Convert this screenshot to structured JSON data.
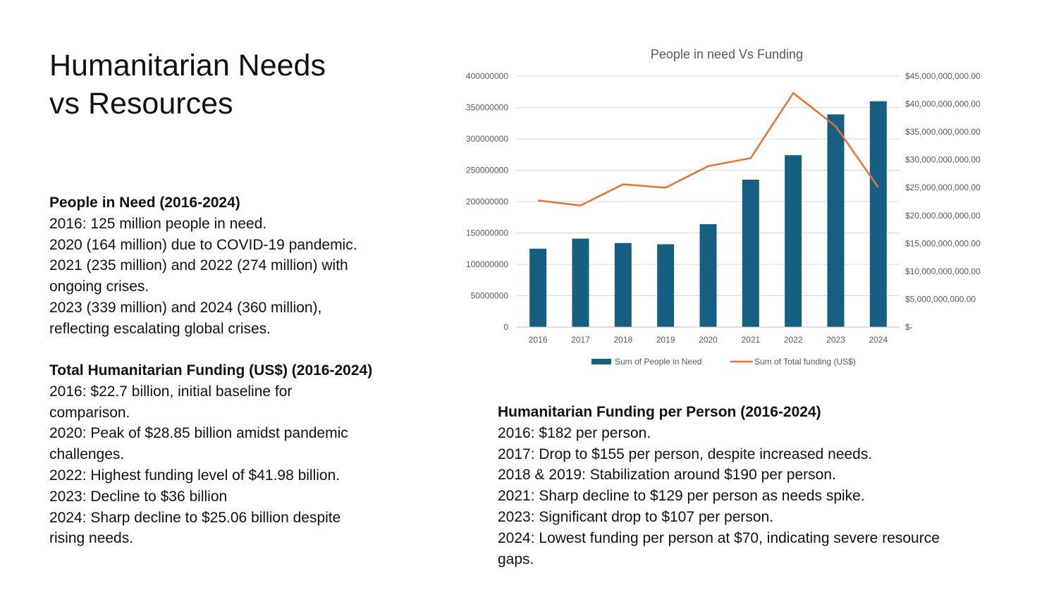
{
  "slide": {
    "title_lines": [
      "Humanitarian Needs",
      "vs Resources"
    ]
  },
  "needs_section": {
    "heading": "People in Need (2016-2024)",
    "lines": [
      "2016: 125 million people in need.",
      "2020 (164 million) due to COVID-19 pandemic.",
      "2021 (235 million) and 2022 (274 million) with",
      "ongoing crises.",
      "2023 (339 million) and 2024 (360 million),",
      "reflecting escalating global crises."
    ]
  },
  "funding_section": {
    "heading": "Total Humanitarian Funding (US$) (2016-2024)",
    "lines": [
      "2016: $22.7 billion, initial baseline for",
      "comparison.",
      "2020: Peak of $28.85 billion amidst pandemic",
      "challenges.",
      "2022: Highest funding level of $41.98 billion.",
      "2023: Decline to $36 billion",
      "2024: Sharp decline to $25.06 billion despite",
      "rising needs."
    ]
  },
  "per_person_section": {
    "heading": "Humanitarian Funding per Person (2016-2024)",
    "lines": [
      "2016: $182 per person.",
      "2017: Drop to $155 per person, despite increased needs.",
      "2018 & 2019: Stabilization around $190 per person.",
      "2021: Sharp decline to $129 per person as needs spike.",
      "2023: Significant drop to $107 per person.",
      "2024: Lowest funding per person at $70, indicating severe resource",
      "gaps."
    ]
  },
  "chart_data": {
    "type": "bar",
    "title": "People in need Vs Funding",
    "categories": [
      "2016",
      "2017",
      "2018",
      "2019",
      "2020",
      "2021",
      "2022",
      "2023",
      "2024"
    ],
    "series": [
      {
        "name": "Sum of People in Need",
        "type": "bar",
        "axis": "left",
        "color": "#156082",
        "values": [
          125000000,
          141000000,
          134000000,
          132000000,
          164000000,
          235000000,
          274000000,
          339000000,
          360000000
        ]
      },
      {
        "name": "Sum of Total funding (US$)",
        "type": "line",
        "axis": "right",
        "color": "#E97132",
        "values": [
          22700000000,
          21800000000,
          25600000000,
          25000000000,
          28850000000,
          30300000000,
          41980000000,
          36000000000,
          25060000000
        ]
      }
    ],
    "ylim_left": [
      0,
      400000000
    ],
    "yticks_left": [
      0,
      50000000,
      100000000,
      150000000,
      200000000,
      250000000,
      300000000,
      350000000,
      400000000
    ],
    "ytick_labels_left": [
      "0",
      "50000000",
      "100000000",
      "150000000",
      "200000000",
      "250000000",
      "300000000",
      "350000000",
      "400000000"
    ],
    "ylim_right": [
      0,
      45000000000
    ],
    "yticks_right": [
      0,
      5000000000,
      10000000000,
      15000000000,
      20000000000,
      25000000000,
      30000000000,
      35000000000,
      40000000000,
      45000000000
    ],
    "ytick_labels_right": [
      "$-",
      "$5,000,000,000.00",
      "$10,000,000,000.00",
      "$15,000,000,000.00",
      "$20,000,000,000.00",
      "$25,000,000,000.00",
      "$30,000,000,000.00",
      "$35,000,000,000.00",
      "$40,000,000,000.00",
      "$45,000,000,000.00"
    ],
    "grid": true,
    "legend_position": "bottom",
    "gridline_color": "#D9D9D9",
    "text_color": "#595959"
  }
}
